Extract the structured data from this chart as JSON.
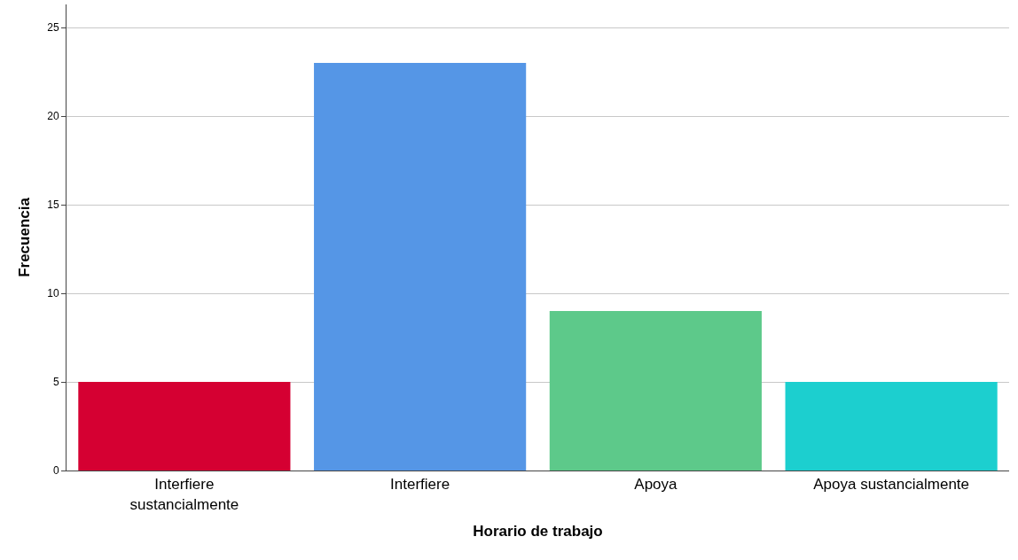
{
  "chart_data": {
    "type": "bar",
    "xlabel": "Horario de trabajo",
    "ylabel": "Frecuencia",
    "categories": [
      "Interfiere sustancialmente",
      "Interfiere",
      "Apoya",
      "Apoya sustancialmente"
    ],
    "values": [
      5,
      23,
      9,
      5
    ],
    "colors": [
      "#d50032",
      "#5596e6",
      "#5dc98a",
      "#1ccfcf"
    ],
    "ylim": [
      0,
      26.3
    ],
    "yticks": [
      0,
      5,
      10,
      15,
      20,
      25
    ],
    "grid": "y"
  }
}
